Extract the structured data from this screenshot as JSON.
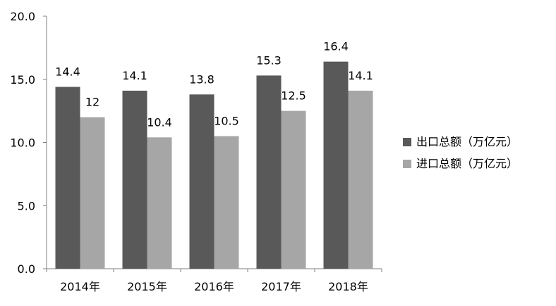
{
  "chart_data": {
    "type": "bar",
    "title": "",
    "xlabel": "",
    "ylabel": "",
    "categories": [
      "2014年",
      "2015年",
      "2016年",
      "2017年",
      "2018年"
    ],
    "series": [
      {
        "name": "出口总额（万亿元）",
        "color": "#595959",
        "values": [
          14.4,
          14.1,
          13.8,
          15.3,
          16.4
        ],
        "labels": [
          "14.4",
          "14.1",
          "13.8",
          "15.3",
          "16.4"
        ]
      },
      {
        "name": "进口总额（万亿元）",
        "color": "#a6a6a6",
        "values": [
          12,
          10.4,
          10.5,
          12.5,
          14.1
        ],
        "labels": [
          "12",
          "10.4",
          "10.5",
          "12.5",
          "14.1"
        ]
      }
    ],
    "ylim": [
      0,
      20
    ],
    "yticks": [
      "0.0",
      "5.0",
      "10.0",
      "15.0",
      "20.0"
    ],
    "ytick_values": [
      0,
      5,
      10,
      15,
      20
    ],
    "grid": false,
    "legend_position": "right"
  }
}
